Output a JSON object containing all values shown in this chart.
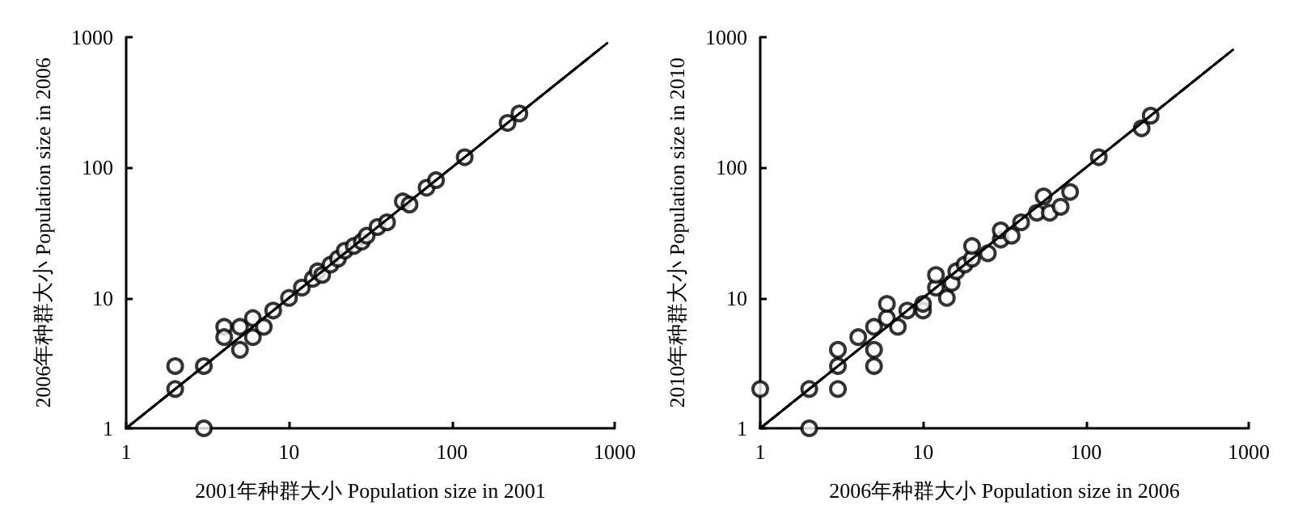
{
  "chart_data": [
    {
      "type": "scatter",
      "xlabel": "2001年种群大小 Population size in 2001",
      "ylabel": "2006年种群大小 Population size in 2006",
      "log": "xy",
      "xlim": [
        1,
        1000
      ],
      "ylim": [
        1,
        1000
      ],
      "xticks": [
        1,
        10,
        100,
        1000
      ],
      "yticks": [
        1,
        10,
        100,
        1000
      ],
      "grid": false,
      "series": [
        {
          "marker": "circle",
          "color": "#000000",
          "x": [
            2,
            2,
            3,
            3,
            4,
            4,
            5,
            5,
            6,
            6,
            7,
            8,
            10,
            12,
            14,
            15,
            16,
            18,
            20,
            22,
            25,
            28,
            30,
            35,
            40,
            50,
            55,
            70,
            80,
            120,
            220,
            260
          ],
          "values": [
            3,
            2,
            3,
            1,
            6,
            5,
            6,
            4,
            7,
            5,
            6,
            8,
            10,
            12,
            14,
            16,
            15,
            18,
            20,
            23,
            25,
            27,
            30,
            35,
            38,
            55,
            52,
            70,
            80,
            120,
            220,
            260
          ]
        },
        {
          "type": "line",
          "marker": "none",
          "line_style": "solid",
          "color": "#000000",
          "x": [
            1,
            900
          ],
          "values": [
            1,
            900
          ]
        },
        {
          "type": "line",
          "marker": "none",
          "line_style": "dashed",
          "color": "#000000",
          "x": [
            1,
            800
          ],
          "values": [
            1,
            800
          ]
        }
      ]
    },
    {
      "type": "scatter",
      "xlabel": "2006年种群大小 Population size in 2006",
      "ylabel": "2010年种群大小 Population size in 2010",
      "log": "xy",
      "xlim": [
        1,
        1000
      ],
      "ylim": [
        1,
        1000
      ],
      "xticks": [
        1,
        10,
        100,
        1000
      ],
      "yticks": [
        1,
        10,
        100,
        1000
      ],
      "grid": false,
      "series": [
        {
          "marker": "circle",
          "color": "#000000",
          "x": [
            1,
            2,
            2,
            3,
            3,
            3,
            4,
            5,
            5,
            5,
            6,
            6,
            7,
            8,
            10,
            10,
            12,
            12,
            14,
            15,
            16,
            18,
            20,
            20,
            25,
            30,
            30,
            35,
            40,
            50,
            55,
            60,
            70,
            80,
            120,
            220,
            250
          ],
          "values": [
            2,
            1,
            2,
            3,
            2,
            4,
            5,
            6,
            3,
            4,
            7,
            9,
            6,
            8,
            8,
            9,
            12,
            15,
            10,
            13,
            16,
            18,
            20,
            25,
            22,
            28,
            33,
            30,
            38,
            45,
            60,
            45,
            50,
            65,
            120,
            200,
            250
          ]
        },
        {
          "type": "line",
          "marker": "none",
          "line_style": "solid",
          "color": "#000000",
          "x": [
            1,
            800
          ],
          "values": [
            1,
            800
          ]
        },
        {
          "type": "line",
          "marker": "none",
          "line_style": "dashed",
          "color": "#000000",
          "x": [
            1,
            750
          ],
          "values": [
            1,
            750
          ]
        }
      ]
    }
  ]
}
